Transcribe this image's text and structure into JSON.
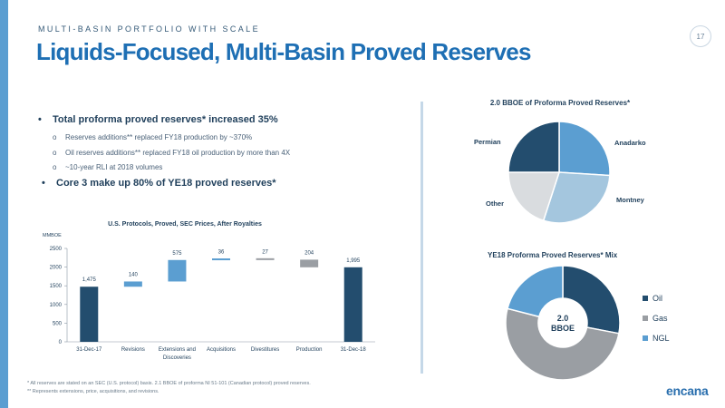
{
  "header": {
    "eyebrow": "MULTI-BASIN PORTFOLIO WITH SCALE",
    "title": "Liquids-Focused, Multi-Basin Proved Reserves",
    "page_number": "17"
  },
  "bullets": {
    "main1": "Total proforma proved reserves* increased 35%",
    "sub1": "Reserves additions** replaced FY18 production by ~370%",
    "sub2": "Oil reserves additions** replaced FY18 oil production by more than 4X",
    "sub3": "~10-year RLI at 2018 volumes",
    "main2": "Core 3 make up 80% of YE18 proved reserves*"
  },
  "footnotes": {
    "line1": "* All reserves are stated on an SEC (U.S. protocol) basis. 2.1 BBOE of proforma NI 51-101 (Canadian protocol) proved reserves.",
    "line2": "** Represents extensions, price, acquisitions, and revisions."
  },
  "logo": "encana",
  "colors": {
    "dark_blue": "#234d6e",
    "light_blue": "#5b9ed1",
    "gray": "#9a9ea3",
    "pale_blue": "#a4c6de",
    "light_gray": "#d9dcdf"
  },
  "chart_data": [
    {
      "type": "bar",
      "subtype": "waterfall",
      "title": "U.S. Protocols, Proved, SEC Prices, After Royalties",
      "ylabel": "MMBOE",
      "ylim": [
        0,
        2500
      ],
      "yticks": [
        0,
        500,
        1000,
        1500,
        2000,
        2500
      ],
      "categories": [
        "31-Dec-17",
        "Revisions",
        "Extensions and Discoveries",
        "Acquisitions",
        "Divestitures",
        "Production",
        "31-Dec-18"
      ],
      "values": [
        1475,
        140,
        575,
        36,
        -27,
        -204,
        1995
      ],
      "labels": [
        "1,475",
        "140",
        "575",
        "36",
        "27",
        "204",
        "1,995"
      ],
      "kinds": [
        "total",
        "increase",
        "increase",
        "increase",
        "decrease",
        "decrease",
        "total"
      ]
    },
    {
      "type": "pie",
      "title": "2.0 BBOE of Proforma Proved Reserves*",
      "labels": [
        "Anadarko",
        "Montney",
        "Other",
        "Permian"
      ],
      "values": [
        26,
        29,
        20,
        25
      ],
      "colors": [
        "#5b9ed1",
        "#a4c6de",
        "#d9dcdf",
        "#234d6e"
      ]
    },
    {
      "type": "pie",
      "subtype": "donut",
      "title": "YE18 Proforma Proved Reserves* Mix",
      "center_label_line1": "2.0",
      "center_label_line2": "BBOE",
      "labels": [
        "Oil",
        "Gas",
        "NGL"
      ],
      "values": [
        28,
        51,
        21
      ],
      "colors": [
        "#234d6e",
        "#9a9ea3",
        "#5b9ed1"
      ],
      "legend": "right"
    }
  ]
}
